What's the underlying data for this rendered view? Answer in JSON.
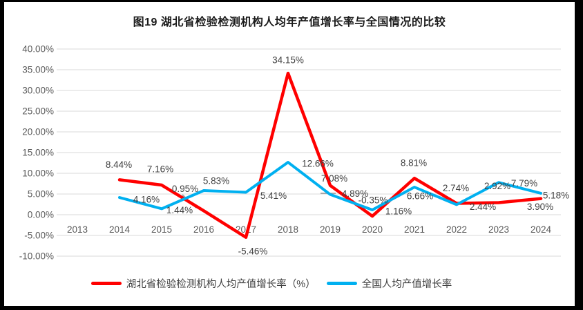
{
  "title": "图19  湖北省检验检测机构人均年产值增长率与全国情况的比较",
  "chart_data": {
    "type": "line",
    "title": "图19  湖北省检验检测机构人均年产值增长率与全国情况的比较",
    "categories": [
      "2013",
      "2014",
      "2015",
      "2016",
      "2017",
      "2018",
      "2019",
      "2020",
      "2021",
      "2022",
      "2023",
      "2024"
    ],
    "series": [
      {
        "name": "湖北省检验检测机构人均产值增长率（%）",
        "color": "#FF0000",
        "values": [
          null,
          8.44,
          7.16,
          0.95,
          -5.46,
          34.15,
          7.08,
          -0.35,
          8.81,
          2.74,
          2.92,
          3.9
        ],
        "labels": [
          "",
          "8.44%",
          "7.16%",
          "0.95%",
          "-5.46%",
          "34.15%",
          "7.08%",
          "-0.35%",
          "8.81%",
          "2.74%",
          "2.92%",
          "3.90%"
        ]
      },
      {
        "name": "全国人均产值增长率",
        "color": "#00B0F0",
        "values": [
          null,
          4.16,
          1.44,
          5.83,
          5.41,
          12.66,
          4.89,
          1.16,
          6.66,
          2.44,
          7.79,
          5.18
        ],
        "labels": [
          "",
          "4.16%",
          "1.44%",
          "5.83%",
          "5.41%",
          "12.66%",
          "4.89%",
          "1.16%",
          "6.66%",
          "2.44%",
          "7.79%",
          "5.18%"
        ]
      }
    ],
    "xlabel": "",
    "ylabel": "",
    "ylim": [
      -10,
      40
    ],
    "y_tick_step": 5,
    "y_tick_labels": [
      "40.00%",
      "35.00%",
      "30.00%",
      "25.00%",
      "20.00%",
      "15.00%",
      "10.00%",
      "5.00%",
      "0.00%",
      "-5.00%",
      "-10.00%"
    ],
    "grid": true,
    "data_labels": true,
    "legend_position": "bottom"
  },
  "colors": {
    "grid": "#D9D9D9",
    "axis_text": "#595959",
    "data_label_text": "#404040",
    "leader_line": "#A6A6A6",
    "frame": "#000000",
    "background": "#FFFFFF"
  }
}
